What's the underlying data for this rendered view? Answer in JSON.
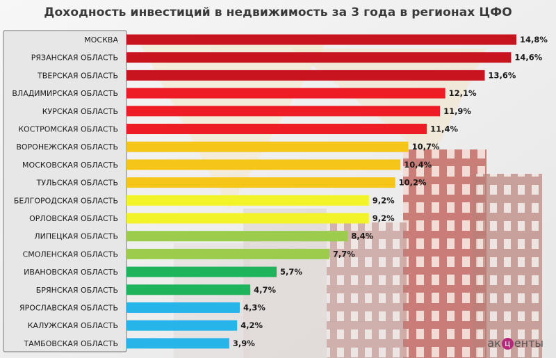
{
  "title": "Доходность инвестиций в недвижимость за 3 года в регионах ЦФО",
  "logo": {
    "text_before": "ак",
    "text_mark": "ц",
    "text_after": "енты"
  },
  "chart_data": {
    "type": "bar",
    "orientation": "horizontal",
    "title": "Доходность инвестиций в недвижимость за 3 года в регионах ЦФО",
    "xlabel": "",
    "ylabel": "",
    "xlim": [
      0,
      15.5
    ],
    "grid": false,
    "legend": "none",
    "categories": [
      "МОСКВА",
      "РЯЗАНСКАЯ ОБЛАСТЬ",
      "ТВЕРСКАЯ ОБЛАСТЬ",
      "ВЛАДИМИРСКАЯ ОБЛАСТЬ",
      "КУРСКАЯ ОБЛАСТЬ",
      "КОСТРОМСКАЯ ОБЛАСТЬ",
      "ВОРОНЕЖСКАЯ ОБЛАСТЬ",
      "МОСКОВСКАЯ ОБЛАСТЬ",
      "ТУЛЬСКАЯ ОБЛАСТЬ",
      "БЕЛГОРОДСКАЯ ОБЛАСТЬ",
      "ОРЛОВСКАЯ ОБЛАСТЬ",
      "ЛИПЕЦКАЯ ОБЛАСТЬ",
      "СМОЛЕНСКАЯ ОБЛАСТЬ",
      "ИВАНОВСКАЯ ОБЛАСТЬ",
      "БРЯНСКАЯ ОБЛАСТЬ",
      "ЯРОСЛАВСКАЯ ОБЛАСТЬ",
      "КАЛУЖСКАЯ ОБЛАСТЬ",
      "ТАМБОВСКАЯ ОБЛАСТЬ"
    ],
    "values": [
      14.8,
      14.6,
      13.6,
      12.1,
      11.9,
      11.4,
      10.7,
      10.4,
      10.2,
      9.2,
      9.2,
      8.4,
      7.7,
      5.7,
      4.7,
      4.3,
      4.2,
      3.9
    ],
    "value_labels": [
      "14,8%",
      "14,6%",
      "13,6%",
      "12,1%",
      "11,9%",
      "11,4%",
      "10,7%",
      "10,4%",
      "10,2%",
      "9,2%",
      "9,2%",
      "8,4%",
      "7,7%",
      "5,7%",
      "4,7%",
      "4,3%",
      "4,2%",
      "3,9%"
    ],
    "colors": [
      "#c8141e",
      "#c8141e",
      "#c8141e",
      "#ee1c24",
      "#ee1c24",
      "#ee1c24",
      "#f5c518",
      "#f5c518",
      "#f5c518",
      "#f3f32a",
      "#f3f32a",
      "#9ccc4c",
      "#9ccc4c",
      "#1fb45c",
      "#1fb45c",
      "#27b4e8",
      "#27b4e8",
      "#27b4e8"
    ]
  }
}
